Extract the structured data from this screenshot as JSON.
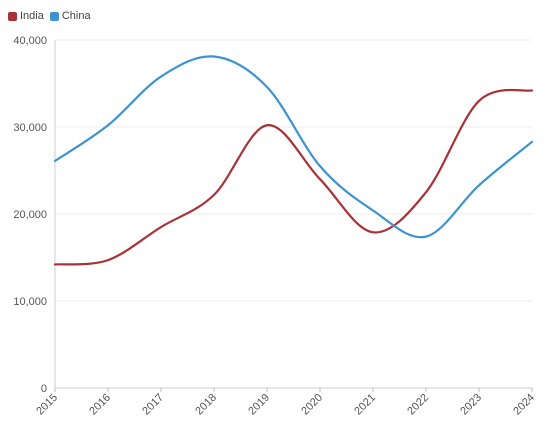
{
  "chart_data": {
    "type": "line",
    "x": [
      "2015",
      "2016",
      "2017",
      "2018",
      "2019",
      "2020",
      "2021",
      "2022",
      "2023",
      "2024"
    ],
    "series": [
      {
        "name": "India",
        "color": "#a83238",
        "values": [
          14200,
          14700,
          18500,
          22200,
          30200,
          24000,
          17900,
          22500,
          33000,
          34200
        ]
      },
      {
        "name": "China",
        "color": "#3d93cf",
        "values": [
          26100,
          30200,
          35800,
          38100,
          34600,
          25500,
          20400,
          17400,
          23300,
          28300
        ]
      }
    ],
    "ylim": [
      0,
      40000
    ],
    "yticks": [
      "0",
      "10,000",
      "20,000",
      "30,000",
      "40,000"
    ],
    "grid": true,
    "legend": "top-left",
    "title": "",
    "xlabel": "",
    "ylabel": ""
  }
}
